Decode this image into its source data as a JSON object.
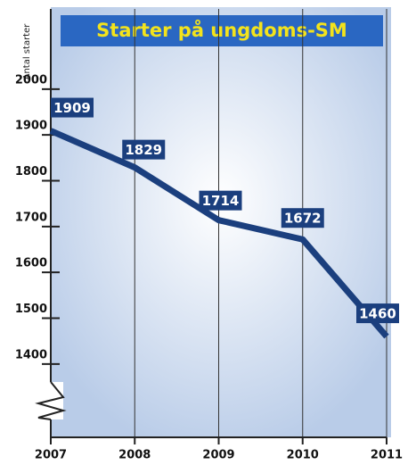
{
  "chart_data": {
    "type": "line",
    "title": "Starter på ungdoms-SM",
    "y_label": "Antal starter",
    "x": [
      2007,
      2008,
      2009,
      2010,
      2011
    ],
    "series": [
      {
        "name": "Starter",
        "color": "#1b3f7e",
        "values": [
          1909,
          1829,
          1714,
          1672,
          1460
        ]
      }
    ],
    "xlim": [
      2007,
      2011
    ],
    "xticks": [
      2007,
      2008,
      2009,
      2010,
      2011
    ],
    "ylim": [
      1240,
      2175
    ],
    "yticks": [
      1400,
      1500,
      1600,
      1700,
      1800,
      1900,
      2000
    ],
    "grid": true,
    "axis_break": true
  }
}
